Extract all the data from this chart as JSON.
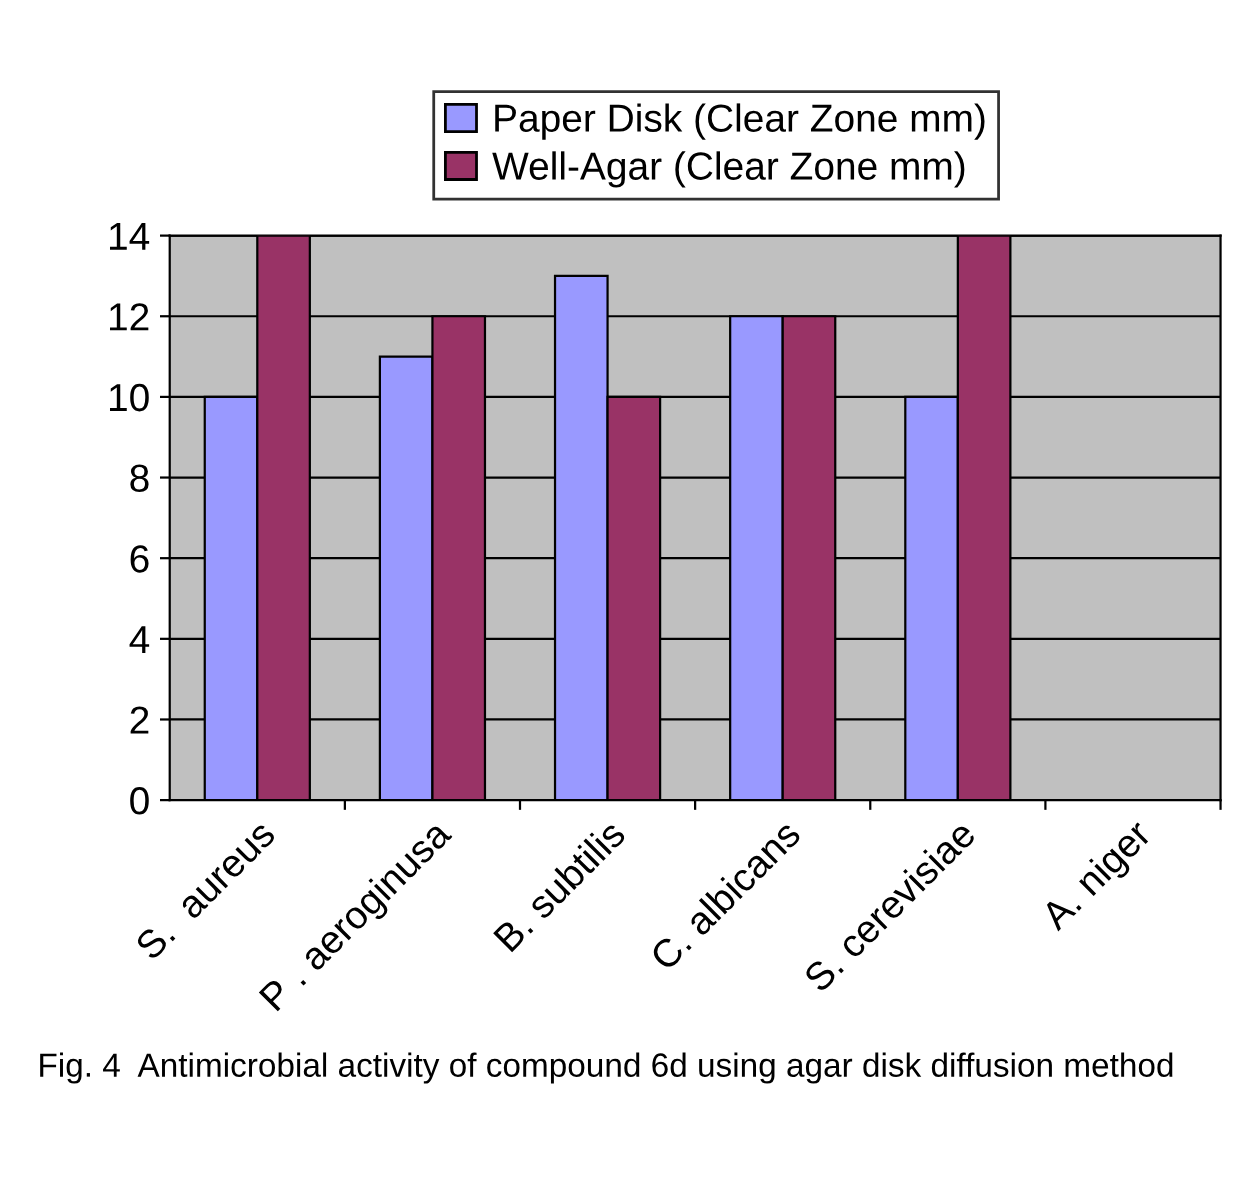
{
  "chart_data": {
    "type": "bar",
    "categories": [
      "S.  aureus",
      "P . aeroginusa",
      "B. subtilis",
      "C. albicans",
      "S. cerevisiae",
      "A. niger"
    ],
    "series": [
      {
        "name": "Paper Disk (Clear Zone mm)",
        "color": "#9999ff",
        "values": [
          10,
          11,
          13,
          12,
          10,
          null
        ]
      },
      {
        "name": "Well-Agar (Clear Zone mm)",
        "color": "#993366",
        "values": [
          14,
          12,
          10,
          12,
          14,
          null
        ]
      }
    ],
    "ylim": [
      0,
      14
    ],
    "yticks": [
      0,
      2,
      4,
      6,
      8,
      10,
      12,
      14
    ],
    "grid": "y",
    "legend": "top",
    "annotations": [
      "Fig. 4  Antimicrobial activity of compound 6d using agar disk diffusion method"
    ]
  }
}
